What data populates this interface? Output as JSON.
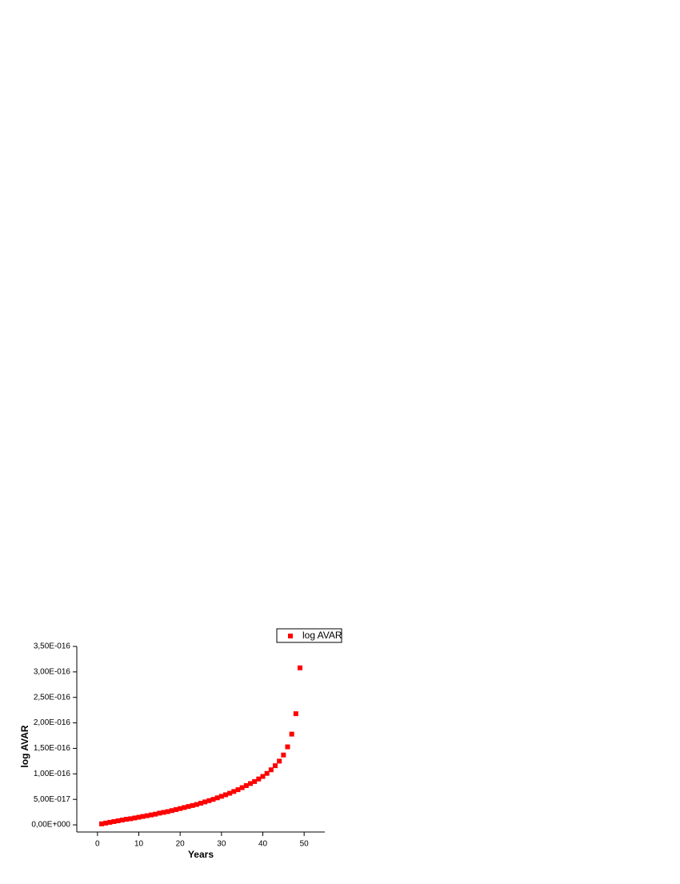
{
  "chart_data": {
    "type": "scatter",
    "x_label": "Years",
    "y_label": "log AVAR",
    "x": [
      1,
      2,
      3,
      4,
      5,
      6,
      7,
      8,
      9,
      10,
      11,
      12,
      13,
      14,
      15,
      16,
      17,
      18,
      19,
      20,
      21,
      22,
      23,
      24,
      25,
      26,
      27,
      28,
      29,
      30,
      31,
      32,
      33,
      34,
      35,
      36,
      37,
      38,
      39,
      40,
      41,
      42,
      43,
      44,
      45,
      46,
      47,
      48,
      49
    ],
    "series": [
      {
        "name": "log AVAR",
        "color": "#ff0000",
        "values": [
          2e-18,
          3.5e-18,
          5e-18,
          6.5e-18,
          8e-18,
          9.5e-18,
          1.1e-17,
          1.2e-17,
          1.35e-17,
          1.5e-17,
          1.65e-17,
          1.8e-17,
          1.95e-17,
          2.1e-17,
          2.3e-17,
          2.45e-17,
          2.6e-17,
          2.8e-17,
          3e-17,
          3.2e-17,
          3.4e-17,
          3.6e-17,
          3.8e-17,
          4e-17,
          4.25e-17,
          4.5e-17,
          4.75e-17,
          5e-17,
          5.3e-17,
          5.6e-17,
          5.9e-17,
          6.2e-17,
          6.55e-17,
          6.9e-17,
          7.3e-17,
          7.7e-17,
          8.1e-17,
          8.5e-17,
          9e-17,
          9.5e-17,
          1.01e-16,
          1.08e-16,
          1.16e-16,
          1.25e-16,
          1.37e-16,
          1.53e-16,
          1.78e-16,
          2.18e-16,
          3.08e-16
        ]
      }
    ],
    "xlim": [
      -5,
      55
    ],
    "xticks": [
      0,
      10,
      20,
      30,
      40,
      50
    ],
    "ylim": [
      -1.4e-17,
      3.5e-16
    ],
    "yticks": [
      {
        "value": 0,
        "label": "0,00E+000"
      },
      {
        "value": 5e-17,
        "label": "5,00E-017"
      },
      {
        "value": 1e-16,
        "label": "1,00E-016"
      },
      {
        "value": 1.5e-16,
        "label": "1,50E-016"
      },
      {
        "value": 2e-16,
        "label": "2,00E-016"
      },
      {
        "value": 2.5e-16,
        "label": "2,50E-016"
      },
      {
        "value": 3e-16,
        "label": "3,00E-016"
      },
      {
        "value": 3.5e-16,
        "label": "3,50E-016"
      }
    ],
    "legend": "top-right"
  }
}
